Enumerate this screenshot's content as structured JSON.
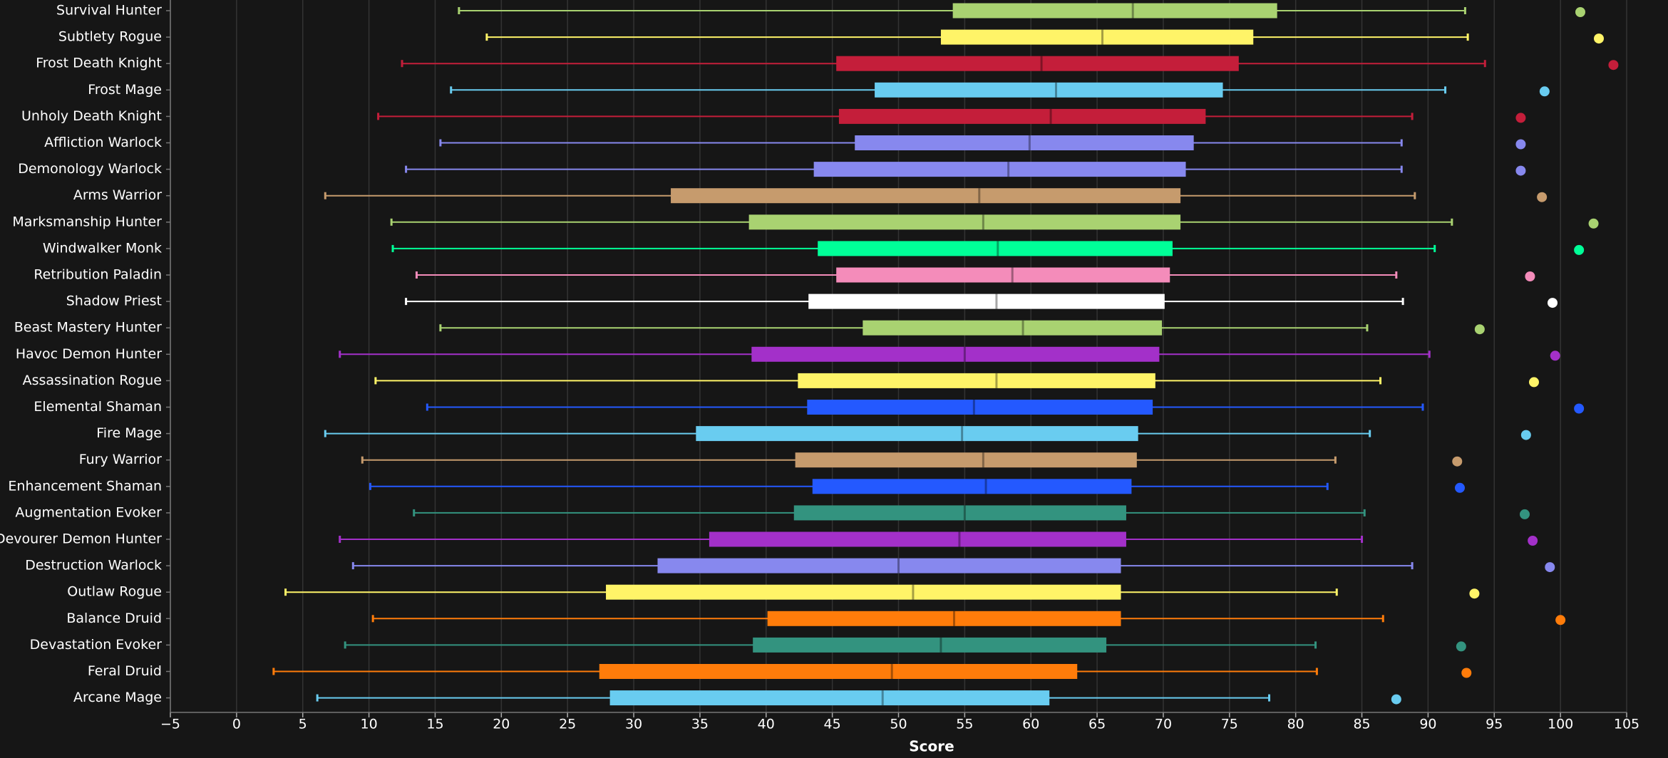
{
  "chart_data": {
    "type": "box",
    "x_label": "Score",
    "categories": [
      "Survival Hunter",
      "Subtlety Rogue",
      "Frost Death Knight",
      "Frost Mage",
      "Unholy Death Knight",
      "Affliction Warlock",
      "Demonology Warlock",
      "Arms Warrior",
      "Marksmanship Hunter",
      "Windwalker Monk",
      "Retribution Paladin",
      "Shadow Priest",
      "Beast Mastery Hunter",
      "Havoc Demon Hunter",
      "Assassination Rogue",
      "Elemental Shaman",
      "Fire Mage",
      "Fury Warrior",
      "Enhancement Shaman",
      "Augmentation Evoker",
      "Devourer Demon Hunter",
      "Destruction Warlock",
      "Outlaw Rogue",
      "Balance Druid",
      "Devastation Evoker",
      "Feral Druid",
      "Arcane Mage"
    ],
    "colors": [
      "#a9d271",
      "#fff468",
      "#c41e3a",
      "#69ccf0",
      "#c41e3a",
      "#8788ee",
      "#8788ee",
      "#c69b6d",
      "#a9d271",
      "#00ff98",
      "#f48cba",
      "#ffffff",
      "#a9d271",
      "#a330c9",
      "#fff468",
      "#2459ff",
      "#69ccf0",
      "#c69b6d",
      "#2459ff",
      "#33937f",
      "#a330c9",
      "#8788ee",
      "#fff468",
      "#ff7c0a",
      "#33937f",
      "#ff7c0a",
      "#69ccf0"
    ],
    "low": [
      16.8,
      18.9,
      12.5,
      16.2,
      10.7,
      15.4,
      12.8,
      6.7,
      11.7,
      11.8,
      13.6,
      12.8,
      15.4,
      7.8,
      10.5,
      14.4,
      6.7,
      9.5,
      10.1,
      13.4,
      7.8,
      8.8,
      3.7,
      10.3,
      8.2,
      2.8,
      6.1
    ],
    "q1": [
      54.1,
      53.2,
      45.3,
      48.2,
      45.5,
      46.7,
      43.6,
      32.8,
      38.7,
      43.9,
      45.3,
      43.2,
      47.3,
      38.9,
      42.4,
      43.1,
      34.7,
      42.2,
      43.5,
      42.1,
      35.7,
      31.8,
      27.9,
      40.1,
      39.0,
      27.4,
      28.2
    ],
    "median": [
      67.7,
      65.4,
      60.8,
      61.9,
      61.5,
      59.9,
      58.3,
      56.1,
      56.4,
      57.5,
      58.6,
      57.4,
      59.4,
      55.0,
      57.4,
      55.7,
      54.8,
      56.4,
      56.6,
      55.0,
      54.6,
      50.0,
      51.1,
      54.2,
      53.2,
      49.5,
      48.8
    ],
    "q3": [
      78.6,
      76.8,
      75.7,
      74.5,
      73.2,
      72.3,
      71.7,
      71.3,
      71.3,
      70.7,
      70.5,
      70.1,
      69.9,
      69.7,
      69.4,
      69.2,
      68.1,
      68.0,
      67.6,
      67.2,
      67.2,
      66.8,
      66.8,
      66.8,
      65.7,
      63.5,
      61.4
    ],
    "high": [
      92.8,
      93.0,
      94.3,
      91.3,
      88.8,
      88.0,
      88.0,
      89.0,
      91.8,
      90.5,
      87.6,
      88.1,
      85.4,
      90.1,
      86.4,
      89.6,
      85.6,
      83.0,
      82.4,
      85.2,
      85.0,
      88.8,
      83.1,
      86.6,
      81.5,
      81.6,
      78.0
    ],
    "dots": [
      101.5,
      102.9,
      104.0,
      98.8,
      97.0,
      97.0,
      97.0,
      98.6,
      102.5,
      101.4,
      97.7,
      99.4,
      93.9,
      99.6,
      98.0,
      101.4,
      97.4,
      92.2,
      92.4,
      97.3,
      97.9,
      99.2,
      93.5,
      100.0,
      92.5,
      92.9,
      87.6
    ],
    "xlim": [
      -5,
      105
    ],
    "xticks": [
      {
        "value": -5,
        "label": "−5"
      },
      0,
      5,
      10,
      15,
      20,
      25,
      30,
      35,
      40,
      45,
      50,
      55,
      60,
      65,
      70,
      75,
      80,
      85,
      90,
      95,
      100,
      105
    ],
    "grid": true
  }
}
